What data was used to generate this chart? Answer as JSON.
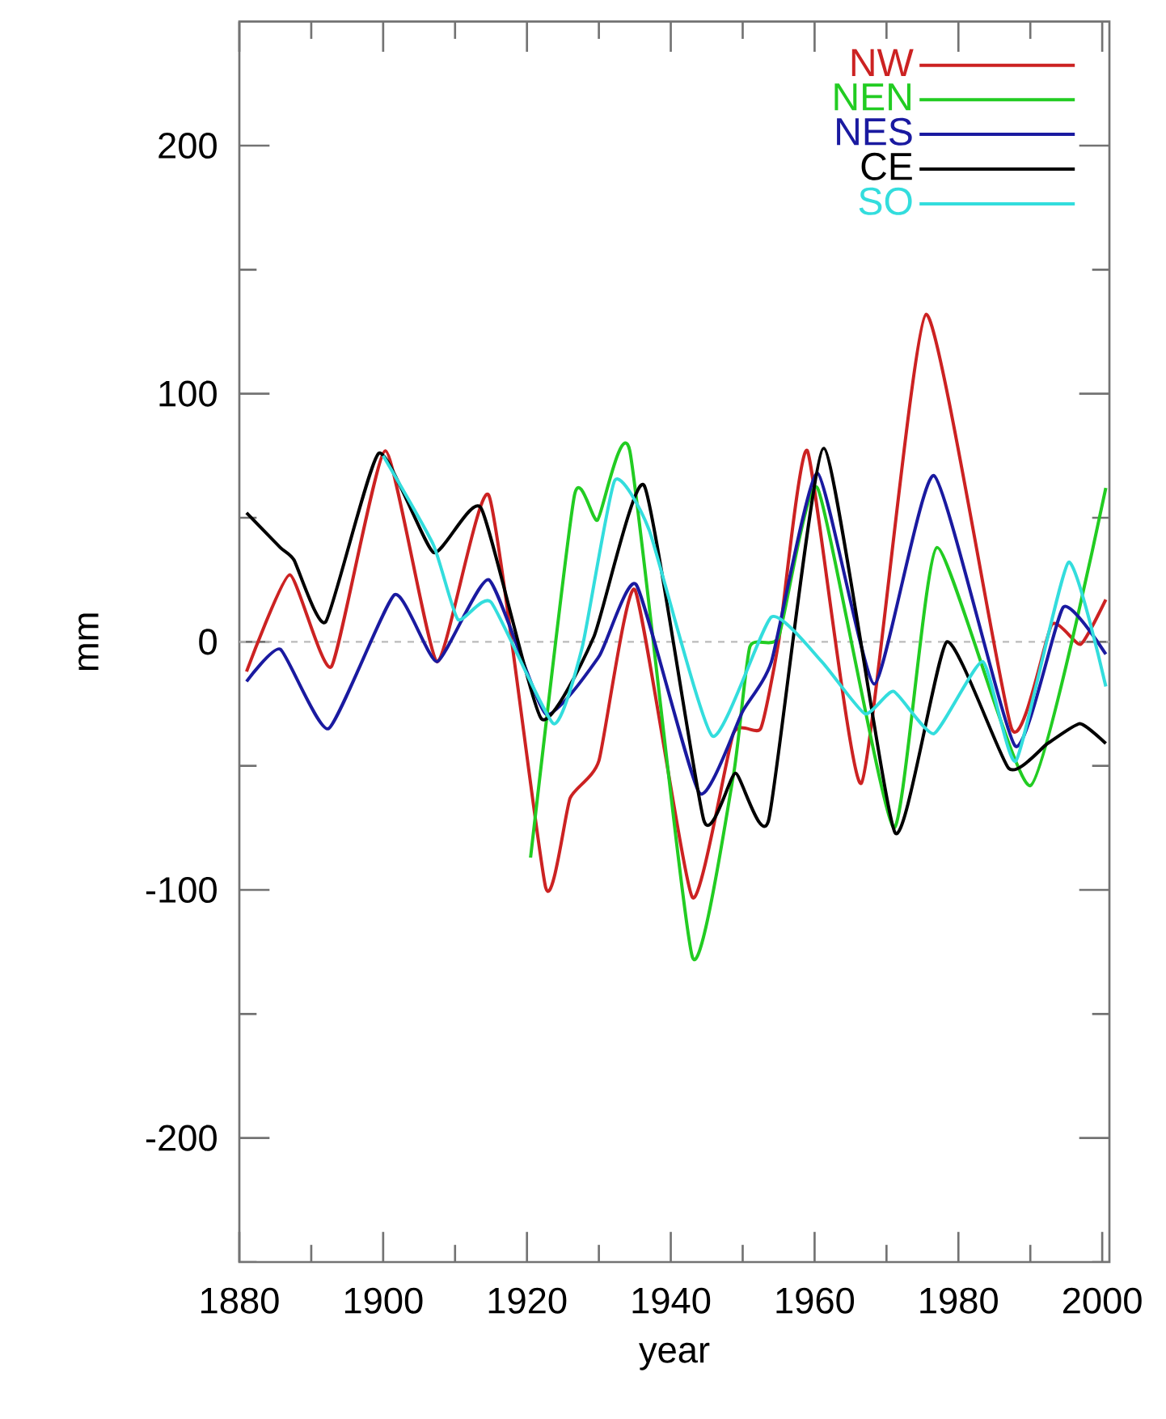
{
  "chart_data": {
    "type": "line",
    "xlabel": "year",
    "ylabel": "mm",
    "xlim": [
      1880,
      2001
    ],
    "ylim": [
      -250,
      250
    ],
    "xticks": [
      1880,
      {
        "value": 1890,
        "label": null
      },
      1900,
      {
        "value": 1910,
        "label": null
      },
      1920,
      {
        "value": 1930,
        "label": null
      },
      1940,
      {
        "value": 1950,
        "label": null
      },
      1960,
      {
        "value": 1970,
        "label": null
      },
      1980,
      {
        "value": 1990,
        "label": null
      },
      2000
    ],
    "yticks": [
      {
        "value": -250,
        "label": null
      },
      -200,
      {
        "value": -150,
        "label": null
      },
      -100,
      {
        "value": -50,
        "label": null
      },
      0,
      {
        "value": 50,
        "label": null
      },
      100,
      {
        "value": 150,
        "label": null
      },
      200,
      {
        "value": 250,
        "label": null
      }
    ],
    "legend": "top right",
    "marker": "none",
    "line_style": "solid",
    "ref_lines": [
      {
        "axis": "y",
        "value": 0,
        "color": "#bbbbbb",
        "line_style": "dashed"
      }
    ],
    "series": [
      {
        "name": "NW",
        "color": "#cc2222",
        "x": [
          1881,
          1887,
          1892.8,
          1900.3,
          1907.5,
          1914.7,
          1922.6,
          1926,
          1930,
          1935,
          1943,
          1948.7,
          1952.5,
          1955,
          1959,
          1966.5,
          1975.5,
          1987.4,
          1993,
          1997,
          2000.5
        ],
        "values": [
          -12,
          27,
          -10,
          77,
          -8,
          59,
          -99,
          -63,
          -48,
          21,
          -103,
          -37,
          -35,
          0,
          77,
          -57,
          132,
          -35,
          7,
          -1,
          17
        ]
      },
      {
        "name": "NEN",
        "color": "#22cc22",
        "x": [
          1920.5,
          1926.6,
          1929.8,
          1934.3,
          1943,
          1948.7,
          1951,
          1955,
          1960.4,
          1971,
          1977,
          1990,
          2000.5
        ],
        "values": [
          -87,
          59,
          49,
          77,
          -127,
          -54,
          -2,
          2,
          62,
          -75,
          38,
          -58,
          62
        ]
      },
      {
        "name": "NES",
        "color": "#1a1aa0",
        "x": [
          1881,
          1885.7,
          1892.4,
          1901.6,
          1907.5,
          1914.7,
          1922.6,
          1930,
          1935.2,
          1944,
          1950,
          1954,
          1960.4,
          1968.3,
          1976.6,
          1987.9,
          1994.6,
          2000.5
        ],
        "values": [
          -16,
          -3,
          -35,
          19,
          -8,
          25,
          -29,
          -6,
          23,
          -61,
          -28,
          -8,
          68,
          -17,
          67,
          -42,
          14,
          -5
        ]
      },
      {
        "name": "CE",
        "color": "#000000",
        "x": [
          1881,
          1885.7,
          1887.6,
          1892,
          1899.4,
          1907,
          1913.6,
          1922,
          1929.3,
          1936.3,
          1944.6,
          1949,
          1953.6,
          1961.3,
          1971.2,
          1978.4,
          1987,
          1992.4,
          1996.9,
          2000.5
        ],
        "values": [
          52,
          38,
          33,
          8,
          76,
          36,
          54,
          -31,
          2,
          63,
          -72,
          -53,
          -72,
          78,
          -77,
          0,
          -51,
          -41,
          -33,
          -41
        ]
      },
      {
        "name": "SO",
        "color": "#33dddd",
        "x": [
          1900,
          1907,
          1910.4,
          1915,
          1923.7,
          1927.7,
          1932.2,
          1937,
          1945.8,
          1954,
          1961,
          1967,
          1971,
          1976.6,
          1983.4,
          1988,
          1995.3,
          2000.5
        ],
        "values": [
          75,
          39,
          9,
          16,
          -33,
          -2,
          65,
          45,
          -38,
          10,
          -8,
          -29,
          -20,
          -37,
          -8,
          -48,
          32,
          -18
        ]
      }
    ]
  }
}
